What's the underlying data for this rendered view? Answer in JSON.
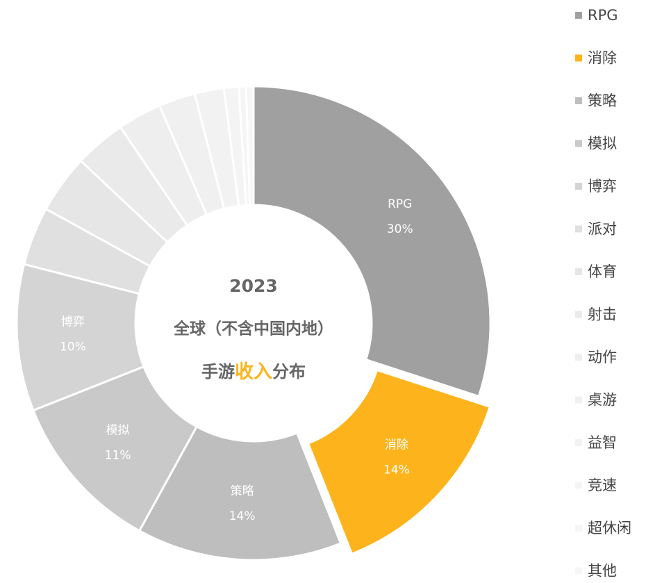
{
  "chart_data": {
    "type": "donut",
    "categories": [
      "RPG",
      "消除",
      "策略",
      "模拟",
      "博弈",
      "派对",
      "体育",
      "射击",
      "动作",
      "桌游",
      "益智",
      "竞速",
      "超休闲",
      "其他"
    ],
    "values": [
      30,
      14,
      14,
      11,
      10,
      4,
      4,
      3.5,
      3,
      2.5,
      2,
      1,
      0.5,
      0.5
    ],
    "value_labels": [
      "30%",
      "14%",
      "14%",
      "11%",
      "10%",
      null,
      null,
      null,
      null,
      null,
      null,
      null,
      null,
      null
    ],
    "colors": [
      "#a0a0a0",
      "#fdb41c",
      "#bebebe",
      "#c9c9c9",
      "#d4d4d4",
      "#e0e0e0",
      "#e6e6e6",
      "#eaeaea",
      "#eeeeee",
      "#f0f0f0",
      "#f2f2f2",
      "#f4f4f4",
      "#f5f5f5",
      "#f6f6f6"
    ],
    "exploded": "消除",
    "legend": "right",
    "center_text": {
      "year": "2023",
      "line2": "全球（不含中国内地）",
      "line3": [
        "手游",
        "收入",
        "分布"
      ]
    }
  }
}
